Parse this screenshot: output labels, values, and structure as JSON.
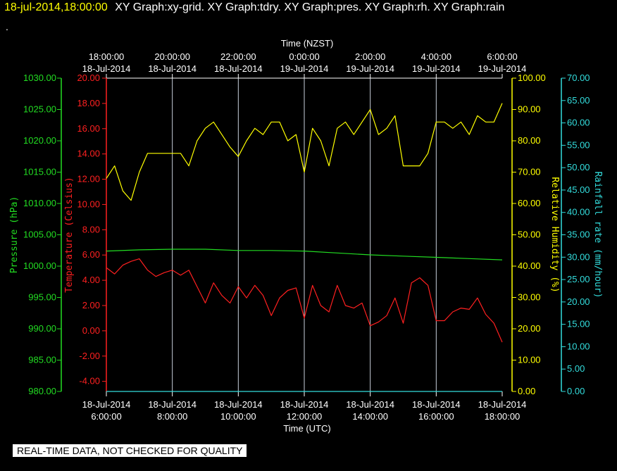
{
  "header": {
    "date_time": "18-jul-2014,18:00:00",
    "graphs": "XY Graph:xy-grid.  XY Graph:tdry.  XY Graph:pres.  XY Graph:rh.  XY Graph:rain",
    "dot": "."
  },
  "notice": "REAL-TIME DATA, NOT CHECKED FOR QUALITY",
  "colors": {
    "background": "#000000",
    "grid": "#c8d0dc",
    "pressure": "#22dd22",
    "temperature": "#ff2020",
    "humidity": "#ffff00",
    "rain": "#33dddd",
    "frame": "#ffffff"
  },
  "chart_data": {
    "type": "line",
    "x_unit": "hours UTC from 18-Jul-2014 06:00",
    "xlim": [
      6,
      18
    ],
    "top_axis": {
      "label": "Time (NZST)",
      "ticks": [
        {
          "time": "18:00:00",
          "date": "18-Jul-2014"
        },
        {
          "time": "20:00:00",
          "date": "18-Jul-2014"
        },
        {
          "time": "22:00:00",
          "date": "18-Jul-2014"
        },
        {
          "time": "0:00:00",
          "date": "19-Jul-2014"
        },
        {
          "time": "2:00:00",
          "date": "19-Jul-2014"
        },
        {
          "time": "4:00:00",
          "date": "19-Jul-2014"
        },
        {
          "time": "6:00:00",
          "date": "19-Jul-2014"
        }
      ]
    },
    "bottom_axis": {
      "label": "Time (UTC)",
      "ticks": [
        {
          "date": "18-Jul-2014",
          "time": "6:00:00"
        },
        {
          "date": "18-Jul-2014",
          "time": "8:00:00"
        },
        {
          "date": "18-Jul-2014",
          "time": "10:00:00"
        },
        {
          "date": "18-Jul-2014",
          "time": "12:00:00"
        },
        {
          "date": "18-Jul-2014",
          "time": "14:00:00"
        },
        {
          "date": "18-Jul-2014",
          "time": "16:00:00"
        },
        {
          "date": "18-Jul-2014",
          "time": "18:00:00"
        }
      ]
    },
    "grid": true,
    "axes": {
      "pressure": {
        "label": "Pressure (hPa)",
        "ylim": [
          980,
          1030
        ],
        "ticks": [
          "980.00",
          "985.00",
          "990.00",
          "995.00",
          "1000.00",
          "1005.00",
          "1010.00",
          "1015.00",
          "1020.00",
          "1025.00",
          "1030.00"
        ]
      },
      "temperature": {
        "label": "Temperature (Celsius)",
        "ylim": [
          -4.8,
          20
        ],
        "ticks": [
          "-4.00",
          "-2.00",
          "0.00",
          "2.00",
          "4.00",
          "6.00",
          "8.00",
          "10.00",
          "12.00",
          "14.00",
          "16.00",
          "18.00",
          "20.00"
        ]
      },
      "humidity": {
        "label": "Relative Humidity (%)",
        "ylim": [
          0,
          100
        ],
        "ticks": [
          "0.00",
          "10.00",
          "20.00",
          "30.00",
          "40.00",
          "50.00",
          "60.00",
          "70.00",
          "80.00",
          "90.00",
          "100.00"
        ]
      },
      "rain": {
        "label": "Rainfall rate (mm/hour)",
        "ylim": [
          0,
          70
        ],
        "ticks": [
          "0.00",
          "5.00",
          "10.00",
          "15.00",
          "20.00",
          "25.00",
          "30.00",
          "35.00",
          "40.00",
          "45.00",
          "50.00",
          "55.00",
          "60.00",
          "65.00",
          "70.00"
        ]
      }
    },
    "series": [
      {
        "name": "Pressure",
        "axis": "pressure",
        "color": "#22dd22",
        "x": [
          6.0,
          7.0,
          8.0,
          9.0,
          10.0,
          11.0,
          12.0,
          13.0,
          14.0,
          15.0,
          16.0,
          17.0,
          18.0
        ],
        "y": [
          1002.4,
          1002.6,
          1002.7,
          1002.7,
          1002.5,
          1002.5,
          1002.4,
          1002.1,
          1001.8,
          1001.6,
          1001.4,
          1001.2,
          1001.0
        ]
      },
      {
        "name": "Temperature",
        "axis": "temperature",
        "color": "#ff2020",
        "x": [
          6.0,
          6.25,
          6.5,
          6.75,
          7.0,
          7.25,
          7.5,
          7.75,
          8.0,
          8.25,
          8.5,
          8.75,
          9.0,
          9.25,
          9.5,
          9.75,
          10.0,
          10.25,
          10.5,
          10.75,
          11.0,
          11.25,
          11.5,
          11.75,
          12.0,
          12.25,
          12.5,
          12.75,
          13.0,
          13.25,
          13.5,
          13.75,
          14.0,
          14.25,
          14.5,
          14.75,
          15.0,
          15.25,
          15.5,
          15.75,
          16.0,
          16.25,
          16.5,
          16.75,
          17.0,
          17.25,
          17.5,
          17.75,
          18.0
        ],
        "y": [
          5.0,
          4.5,
          5.2,
          5.5,
          5.7,
          4.8,
          4.3,
          4.6,
          4.8,
          4.4,
          4.8,
          3.5,
          2.2,
          3.8,
          2.8,
          2.2,
          3.5,
          2.6,
          3.6,
          2.8,
          1.2,
          2.6,
          3.2,
          3.4,
          1.0,
          3.6,
          2.0,
          1.5,
          3.6,
          2.0,
          1.8,
          2.2,
          0.4,
          0.7,
          1.2,
          2.6,
          0.6,
          3.8,
          4.2,
          3.6,
          0.8,
          0.8,
          1.5,
          1.8,
          1.7,
          2.6,
          1.3,
          0.6,
          -0.9
        ]
      },
      {
        "name": "Relative Humidity",
        "axis": "humidity",
        "color": "#ffff00",
        "x": [
          6.0,
          6.25,
          6.5,
          6.75,
          7.0,
          7.25,
          7.5,
          7.75,
          8.0,
          8.25,
          8.5,
          8.75,
          9.0,
          9.25,
          9.5,
          9.75,
          10.0,
          10.25,
          10.5,
          10.75,
          11.0,
          11.25,
          11.5,
          11.75,
          12.0,
          12.25,
          12.5,
          12.75,
          13.0,
          13.25,
          13.5,
          13.75,
          14.0,
          14.25,
          14.5,
          14.75,
          15.0,
          15.25,
          15.5,
          15.75,
          16.0,
          16.25,
          16.5,
          16.75,
          17.0,
          17.25,
          17.5,
          17.75,
          18.0
        ],
        "y": [
          68,
          72,
          64,
          61,
          70,
          76,
          76,
          76,
          76,
          76,
          72,
          80,
          84,
          86,
          82,
          78,
          75,
          80,
          84,
          82,
          86,
          86,
          80,
          82,
          70,
          84,
          80,
          72,
          84,
          86,
          82,
          86,
          90,
          82,
          84,
          88,
          72,
          72,
          72,
          76,
          86,
          86,
          84,
          86,
          82,
          88,
          86,
          86,
          92
        ]
      },
      {
        "name": "Rainfall rate",
        "axis": "rain",
        "color": "#33dddd",
        "x": [
          6.0,
          18.0
        ],
        "y": [
          0.0,
          0.0
        ]
      }
    ]
  }
}
